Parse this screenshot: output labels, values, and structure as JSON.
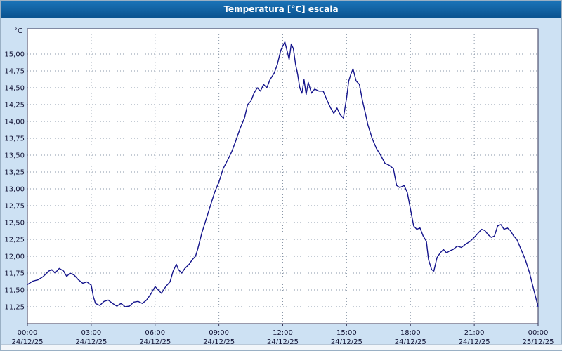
{
  "window": {
    "title": "Temperatura [°C] escala"
  },
  "colors": {
    "titlebar": "#0e68a8",
    "panel_background": "#cde1f3",
    "plot_background": "#ffffff",
    "plot_border": "#333355",
    "grid": "#8a97a8",
    "line": "#14148c",
    "tick_text": "#111133"
  },
  "chart_data": {
    "type": "line",
    "title": "Temperatura [°C] escala",
    "xlabel": "",
    "ylabel": "°C",
    "unit_label": "°C",
    "ylim": [
      11.0,
      15.375
    ],
    "grid": true,
    "legend": "none",
    "yticks": [
      {
        "value": 11.25,
        "label": "11,25"
      },
      {
        "value": 11.5,
        "label": "11,50"
      },
      {
        "value": 11.75,
        "label": "11,75"
      },
      {
        "value": 12.0,
        "label": "12,00"
      },
      {
        "value": 12.25,
        "label": "12,25"
      },
      {
        "value": 12.5,
        "label": "12,50"
      },
      {
        "value": 12.75,
        "label": "12,75"
      },
      {
        "value": 13.0,
        "label": "13,00"
      },
      {
        "value": 13.25,
        "label": "13,25"
      },
      {
        "value": 13.5,
        "label": "13,50"
      },
      {
        "value": 13.75,
        "label": "13,75"
      },
      {
        "value": 14.0,
        "label": "14,00"
      },
      {
        "value": 14.25,
        "label": "14,25"
      },
      {
        "value": 14.5,
        "label": "14,50"
      },
      {
        "value": 14.75,
        "label": "14,75"
      },
      {
        "value": 15.0,
        "label": "15,00"
      }
    ],
    "xticks": [
      {
        "hour": 0,
        "time": "00:00",
        "date": "24/12/25"
      },
      {
        "hour": 3,
        "time": "03:00",
        "date": "24/12/25"
      },
      {
        "hour": 6,
        "time": "06:00",
        "date": "24/12/25"
      },
      {
        "hour": 9,
        "time": "09:00",
        "date": "24/12/25"
      },
      {
        "hour": 12,
        "time": "12:00",
        "date": "24/12/25"
      },
      {
        "hour": 15,
        "time": "15:00",
        "date": "24/12/25"
      },
      {
        "hour": 18,
        "time": "18:00",
        "date": "24/12/25"
      },
      {
        "hour": 21,
        "time": "21:00",
        "date": "24/12/25"
      },
      {
        "hour": 24,
        "time": "00:00",
        "date": "25/12/25"
      }
    ],
    "series": [
      {
        "name": "Temperatura",
        "color": "#14148c",
        "points": [
          [
            0,
            11.58
          ],
          [
            0.25,
            11.63
          ],
          [
            0.5,
            11.65
          ],
          [
            0.75,
            11.7
          ],
          [
            1,
            11.78
          ],
          [
            1.15,
            11.8
          ],
          [
            1.3,
            11.75
          ],
          [
            1.5,
            11.82
          ],
          [
            1.7,
            11.78
          ],
          [
            1.85,
            11.7
          ],
          [
            2,
            11.75
          ],
          [
            2.2,
            11.72
          ],
          [
            2.4,
            11.65
          ],
          [
            2.6,
            11.6
          ],
          [
            2.8,
            11.62
          ],
          [
            3,
            11.57
          ],
          [
            3.1,
            11.4
          ],
          [
            3.2,
            11.3
          ],
          [
            3.4,
            11.27
          ],
          [
            3.6,
            11.33
          ],
          [
            3.8,
            11.35
          ],
          [
            4,
            11.3
          ],
          [
            4.2,
            11.26
          ],
          [
            4.4,
            11.3
          ],
          [
            4.6,
            11.25
          ],
          [
            4.8,
            11.26
          ],
          [
            5,
            11.32
          ],
          [
            5.2,
            11.33
          ],
          [
            5.4,
            11.3
          ],
          [
            5.6,
            11.35
          ],
          [
            5.8,
            11.44
          ],
          [
            6,
            11.55
          ],
          [
            6.15,
            11.5
          ],
          [
            6.3,
            11.45
          ],
          [
            6.5,
            11.55
          ],
          [
            6.7,
            11.62
          ],
          [
            6.85,
            11.78
          ],
          [
            7,
            11.88
          ],
          [
            7.1,
            11.8
          ],
          [
            7.25,
            11.75
          ],
          [
            7.4,
            11.82
          ],
          [
            7.6,
            11.88
          ],
          [
            7.75,
            11.95
          ],
          [
            7.9,
            12.0
          ],
          [
            8,
            12.1
          ],
          [
            8.2,
            12.35
          ],
          [
            8.4,
            12.55
          ],
          [
            8.6,
            12.75
          ],
          [
            8.8,
            12.95
          ],
          [
            9,
            13.1
          ],
          [
            9.2,
            13.3
          ],
          [
            9.4,
            13.42
          ],
          [
            9.6,
            13.55
          ],
          [
            9.8,
            13.72
          ],
          [
            10,
            13.9
          ],
          [
            10.2,
            14.05
          ],
          [
            10.35,
            14.25
          ],
          [
            10.5,
            14.3
          ],
          [
            10.65,
            14.42
          ],
          [
            10.8,
            14.5
          ],
          [
            10.95,
            14.45
          ],
          [
            11.1,
            14.55
          ],
          [
            11.25,
            14.5
          ],
          [
            11.4,
            14.62
          ],
          [
            11.6,
            14.72
          ],
          [
            11.75,
            14.85
          ],
          [
            11.9,
            15.05
          ],
          [
            12,
            15.12
          ],
          [
            12.1,
            15.18
          ],
          [
            12.2,
            15.05
          ],
          [
            12.3,
            14.92
          ],
          [
            12.4,
            15.15
          ],
          [
            12.5,
            15.08
          ],
          [
            12.6,
            14.85
          ],
          [
            12.7,
            14.7
          ],
          [
            12.8,
            14.5
          ],
          [
            12.9,
            14.42
          ],
          [
            13,
            14.62
          ],
          [
            13.1,
            14.4
          ],
          [
            13.2,
            14.58
          ],
          [
            13.35,
            14.42
          ],
          [
            13.5,
            14.48
          ],
          [
            13.7,
            14.45
          ],
          [
            13.9,
            14.45
          ],
          [
            14.1,
            14.3
          ],
          [
            14.25,
            14.2
          ],
          [
            14.4,
            14.12
          ],
          [
            14.55,
            14.2
          ],
          [
            14.7,
            14.1
          ],
          [
            14.85,
            14.05
          ],
          [
            15,
            14.35
          ],
          [
            15.1,
            14.6
          ],
          [
            15.2,
            14.7
          ],
          [
            15.3,
            14.78
          ],
          [
            15.45,
            14.6
          ],
          [
            15.6,
            14.55
          ],
          [
            15.75,
            14.3
          ],
          [
            15.9,
            14.1
          ],
          [
            16,
            13.95
          ],
          [
            16.2,
            13.75
          ],
          [
            16.4,
            13.6
          ],
          [
            16.6,
            13.5
          ],
          [
            16.8,
            13.38
          ],
          [
            17,
            13.35
          ],
          [
            17.2,
            13.3
          ],
          [
            17.35,
            13.05
          ],
          [
            17.5,
            13.02
          ],
          [
            17.7,
            13.05
          ],
          [
            17.85,
            12.95
          ],
          [
            18,
            12.7
          ],
          [
            18.15,
            12.45
          ],
          [
            18.3,
            12.4
          ],
          [
            18.45,
            12.42
          ],
          [
            18.6,
            12.3
          ],
          [
            18.75,
            12.22
          ],
          [
            18.85,
            11.95
          ],
          [
            19,
            11.8
          ],
          [
            19.1,
            11.78
          ],
          [
            19.25,
            11.98
          ],
          [
            19.4,
            12.05
          ],
          [
            19.55,
            12.1
          ],
          [
            19.7,
            12.05
          ],
          [
            19.85,
            12.08
          ],
          [
            20,
            12.1
          ],
          [
            20.2,
            12.15
          ],
          [
            20.4,
            12.13
          ],
          [
            20.6,
            12.18
          ],
          [
            20.8,
            12.22
          ],
          [
            21,
            12.28
          ],
          [
            21.2,
            12.35
          ],
          [
            21.35,
            12.4
          ],
          [
            21.5,
            12.38
          ],
          [
            21.65,
            12.32
          ],
          [
            21.8,
            12.28
          ],
          [
            21.95,
            12.3
          ],
          [
            22.1,
            12.45
          ],
          [
            22.25,
            12.47
          ],
          [
            22.4,
            12.4
          ],
          [
            22.55,
            12.42
          ],
          [
            22.7,
            12.38
          ],
          [
            22.85,
            12.3
          ],
          [
            23,
            12.25
          ],
          [
            23.2,
            12.1
          ],
          [
            23.4,
            11.95
          ],
          [
            23.6,
            11.75
          ],
          [
            23.8,
            11.5
          ],
          [
            24,
            11.25
          ]
        ]
      }
    ]
  }
}
